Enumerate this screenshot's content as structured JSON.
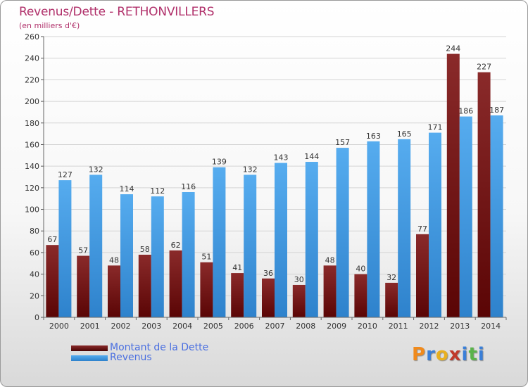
{
  "header": {
    "title": "Revenus/Dette - RETHONVILLERS",
    "subtitle": "(en milliers d'€)"
  },
  "legend": {
    "items": [
      {
        "label": "Montant de la Dette"
      },
      {
        "label": "Revenus"
      }
    ]
  },
  "logo": {
    "text": "Proxiti"
  },
  "colors": {
    "dette": "#7a1c1c",
    "dette_dark": "#5a0a0a",
    "revenus": "#4aa3e8",
    "revenus_dark": "#2a7cc8",
    "title": "#b0306a",
    "legend_text": "#4a6fe0"
  },
  "chart_data": {
    "type": "bar",
    "categories": [
      "2000",
      "2001",
      "2002",
      "2003",
      "2004",
      "2005",
      "2006",
      "2007",
      "2008",
      "2009",
      "2010",
      "2011",
      "2012",
      "2013",
      "2014"
    ],
    "series": [
      {
        "name": "Montant de la Dette",
        "values": [
          67,
          57,
          48,
          58,
          62,
          51,
          41,
          36,
          30,
          48,
          40,
          32,
          77,
          244,
          227
        ]
      },
      {
        "name": "Revenus",
        "values": [
          127,
          132,
          114,
          112,
          116,
          139,
          132,
          143,
          144,
          157,
          163,
          165,
          171,
          186,
          187
        ]
      }
    ],
    "title": "Revenus/Dette - RETHONVILLERS",
    "ylabel": "(en milliers d'€)",
    "ylim": [
      0,
      260
    ],
    "yticks": [
      0,
      20,
      40,
      60,
      80,
      100,
      120,
      140,
      160,
      180,
      200,
      220,
      240,
      260
    ],
    "grid": true,
    "legend_position": "bottom-left"
  }
}
